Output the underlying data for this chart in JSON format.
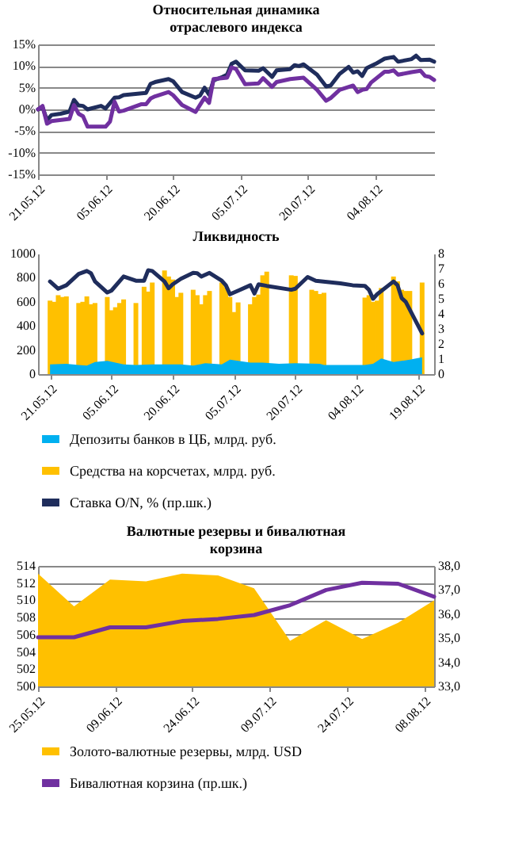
{
  "chart_data": [
    {
      "type": "line",
      "title": "Относительная динамика отраслевого индекса",
      "xlim": [
        "2012-05-21",
        "2012-08-17"
      ],
      "xticks": [
        {
          "value": "2012-05-21",
          "label": "21.05.12"
        },
        {
          "value": "2012-06-05",
          "label": "05.06.12"
        },
        {
          "value": "2012-06-20",
          "label": "20.06.12"
        },
        {
          "value": "2012-07-05",
          "label": "05.07.12"
        },
        {
          "value": "2012-07-20",
          "label": "20.07.12"
        },
        {
          "value": "2012-08-04",
          "label": "04.08.12"
        }
      ],
      "ylim": [
        -15,
        15
      ],
      "yticks": [
        {
          "value": -15,
          "label": "-15%"
        },
        {
          "value": -10,
          "label": "-10%"
        },
        {
          "value": -5,
          "label": "-5%"
        },
        {
          "value": 0,
          "label": "0%"
        },
        {
          "value": 5,
          "label": "5%"
        },
        {
          "value": 10,
          "label": "10%"
        },
        {
          "value": 15,
          "label": "15%"
        }
      ],
      "grid": "y",
      "legend": false,
      "series": [
        {
          "color": "#1f2d5c",
          "x": [
            "2012-05-21",
            "2012-05-22",
            "2012-05-23",
            "2012-05-24",
            "2012-05-26",
            "2012-05-28",
            "2012-05-29",
            "2012-05-30",
            "2012-05-31",
            "2012-06-01",
            "2012-06-04",
            "2012-06-05",
            "2012-06-07",
            "2012-06-08",
            "2012-06-09",
            "2012-06-13",
            "2012-06-14",
            "2012-06-15",
            "2012-06-16",
            "2012-06-19",
            "2012-06-20",
            "2012-06-22",
            "2012-06-25",
            "2012-06-26",
            "2012-06-27",
            "2012-06-28",
            "2012-06-29",
            "2012-07-01",
            "2012-07-02",
            "2012-07-03",
            "2012-07-04",
            "2012-07-06",
            "2012-07-09",
            "2012-07-10",
            "2012-07-12",
            "2012-07-13",
            "2012-07-16",
            "2012-07-17",
            "2012-07-18",
            "2012-07-19",
            "2012-07-22",
            "2012-07-24",
            "2012-07-25",
            "2012-07-27",
            "2012-07-29",
            "2012-07-30",
            "2012-07-31",
            "2012-08-01",
            "2012-08-02",
            "2012-08-04",
            "2012-08-06",
            "2012-08-08",
            "2012-08-09",
            "2012-08-12",
            "2012-08-13",
            "2012-08-14",
            "2012-08-16",
            "2012-08-17"
          ],
          "values": [
            0,
            0.5,
            -2.5,
            -1.3,
            -1.0,
            -0.5,
            2.2,
            0.9,
            0.8,
            0,
            0.8,
            0.2,
            2.7,
            2.8,
            3.3,
            3.7,
            3.8,
            5.9,
            6.3,
            7.0,
            6.5,
            4.0,
            2.7,
            3.2,
            5.0,
            3.4,
            6.7,
            7.5,
            8.0,
            10.5,
            11.0,
            9.0,
            8.9,
            9.5,
            7.5,
            9.0,
            9.3,
            10.2,
            10.0,
            10.4,
            8.0,
            5.3,
            5.5,
            8.2,
            9.8,
            8.5,
            8.8,
            7.7,
            9.5,
            10.5,
            11.7,
            12.1,
            11.0,
            11.6,
            12.4,
            11.4,
            11.5,
            11.0
          ]
        },
        {
          "color": "#7030a0",
          "x": [
            "2012-05-21",
            "2012-05-22",
            "2012-05-23",
            "2012-05-24",
            "2012-05-28",
            "2012-05-29",
            "2012-05-30",
            "2012-05-31",
            "2012-06-01",
            "2012-06-05",
            "2012-06-06",
            "2012-06-07",
            "2012-06-08",
            "2012-06-09",
            "2012-06-13",
            "2012-06-14",
            "2012-06-15",
            "2012-06-16",
            "2012-06-19",
            "2012-06-20",
            "2012-06-22",
            "2012-06-25",
            "2012-06-27",
            "2012-06-28",
            "2012-06-29",
            "2012-07-02",
            "2012-07-03",
            "2012-07-04",
            "2012-07-06",
            "2012-07-09",
            "2012-07-10",
            "2012-07-12",
            "2012-07-13",
            "2012-07-16",
            "2012-07-19",
            "2012-07-22",
            "2012-07-24",
            "2012-07-25",
            "2012-07-27",
            "2012-07-30",
            "2012-07-31",
            "2012-08-01",
            "2012-08-02",
            "2012-08-03",
            "2012-08-06",
            "2012-08-07",
            "2012-08-08",
            "2012-08-09",
            "2012-08-12",
            "2012-08-14",
            "2012-08-15",
            "2012-08-16",
            "2012-08-17"
          ],
          "values": [
            0,
            0.8,
            -3.3,
            -2.7,
            -2.2,
            1.0,
            -1.0,
            -1.6,
            -4.0,
            -4.0,
            -2.8,
            1.8,
            -0.5,
            -0.3,
            1.2,
            1.2,
            2.5,
            3.0,
            4.0,
            3.3,
            1.0,
            -0.6,
            2.7,
            1.5,
            7.0,
            7.3,
            9.7,
            9.3,
            5.8,
            6.0,
            7.2,
            5.2,
            6.3,
            7.0,
            7.3,
            4.5,
            2.0,
            2.6,
            4.5,
            5.5,
            4.0,
            4.5,
            4.7,
            6.2,
            8.7,
            8.7,
            9.0,
            8.0,
            8.6,
            8.9,
            7.7,
            7.5,
            6.8
          ]
        }
      ]
    },
    {
      "type": "bar",
      "title": "Ликвидность",
      "xlim": [
        "2012-05-20",
        "2012-08-21"
      ],
      "xticks": [
        {
          "value": "2012-05-21",
          "label": "21.05.12"
        },
        {
          "value": "2012-06-05",
          "label": "05.06.12"
        },
        {
          "value": "2012-06-20",
          "label": "20.06.12"
        },
        {
          "value": "2012-07-05",
          "label": "05.07.12"
        },
        {
          "value": "2012-07-20",
          "label": "20.07.12"
        },
        {
          "value": "2012-08-04",
          "label": "04.08.12"
        },
        {
          "value": "2012-08-19",
          "label": "19.08.12"
        }
      ],
      "ylim": [
        0,
        1000
      ],
      "yticks": [
        0,
        200,
        400,
        600,
        800,
        1000
      ],
      "y2lim": [
        0,
        8
      ],
      "y2ticks": [
        0,
        1,
        2,
        3,
        4,
        5,
        6,
        7,
        8
      ],
      "legend": "bottom",
      "series": [
        {
          "name": "Депозиты банков в ЦБ, млрд. руб.",
          "type": "area",
          "color": "#00b0f0",
          "x": [
            "2012-05-21",
            "2012-05-25",
            "2012-05-28",
            "2012-05-30",
            "2012-06-01",
            "2012-06-04",
            "2012-06-06",
            "2012-06-08",
            "2012-06-11",
            "2012-06-15",
            "2012-06-22",
            "2012-06-25",
            "2012-06-28",
            "2012-07-02",
            "2012-07-04",
            "2012-07-06",
            "2012-07-09",
            "2012-07-12",
            "2012-07-16",
            "2012-07-20",
            "2012-07-26",
            "2012-07-27",
            "2012-08-06",
            "2012-08-08",
            "2012-08-10",
            "2012-08-13",
            "2012-08-15",
            "2012-08-17",
            "2012-08-20"
          ],
          "values": [
            80,
            85,
            75,
            70,
            100,
            110,
            95,
            80,
            75,
            80,
            80,
            70,
            90,
            80,
            120,
            110,
            95,
            95,
            85,
            90,
            85,
            75,
            75,
            85,
            130,
            100,
            110,
            120,
            140
          ]
        },
        {
          "name": "Средства на корсчетах, млрд. руб.",
          "type": "bar",
          "color": "#ffc000",
          "x": [
            "2012-05-21",
            "2012-05-22",
            "2012-05-23",
            "2012-05-24",
            "2012-05-25",
            "2012-05-28",
            "2012-05-29",
            "2012-05-30",
            "2012-05-31",
            "2012-06-01",
            "2012-06-04",
            "2012-06-05",
            "2012-06-06",
            "2012-06-07",
            "2012-06-08",
            "2012-06-11",
            "2012-06-13",
            "2012-06-14",
            "2012-06-15",
            "2012-06-18",
            "2012-06-19",
            "2012-06-20",
            "2012-06-21",
            "2012-06-22",
            "2012-06-25",
            "2012-06-26",
            "2012-06-27",
            "2012-06-28",
            "2012-06-29",
            "2012-07-02",
            "2012-07-03",
            "2012-07-04",
            "2012-07-05",
            "2012-07-06",
            "2012-07-09",
            "2012-07-10",
            "2012-07-11",
            "2012-07-12",
            "2012-07-13",
            "2012-07-19",
            "2012-07-20",
            "2012-07-24",
            "2012-07-25",
            "2012-07-26",
            "2012-07-27",
            "2012-08-06",
            "2012-08-07",
            "2012-08-08",
            "2012-08-09",
            "2012-08-10",
            "2012-08-13",
            "2012-08-14",
            "2012-08-15",
            "2012-08-16",
            "2012-08-17",
            "2012-08-20"
          ],
          "values": [
            610,
            600,
            655,
            640,
            645,
            590,
            600,
            645,
            580,
            590,
            640,
            530,
            555,
            590,
            620,
            590,
            725,
            685,
            760,
            860,
            810,
            785,
            640,
            675,
            700,
            655,
            580,
            655,
            690,
            760,
            720,
            640,
            515,
            595,
            580,
            640,
            660,
            820,
            850,
            820,
            815,
            700,
            690,
            665,
            675,
            635,
            655,
            600,
            610,
            715,
            810,
            770,
            700,
            690,
            690,
            760
          ]
        },
        {
          "name": "Ставка O/N, % (пр.шк.)",
          "type": "line",
          "axis": "y2",
          "color": "#1f2d5c",
          "x": [
            "2012-05-21",
            "2012-05-23",
            "2012-05-25",
            "2012-05-28",
            "2012-05-30",
            "2012-05-31",
            "2012-06-01",
            "2012-06-04",
            "2012-06-05",
            "2012-06-08",
            "2012-06-11",
            "2012-06-13",
            "2012-06-14",
            "2012-06-15",
            "2012-06-18",
            "2012-06-19",
            "2012-06-20",
            "2012-06-22",
            "2012-06-25",
            "2012-06-26",
            "2012-06-27",
            "2012-06-29",
            "2012-07-02",
            "2012-07-03",
            "2012-07-04",
            "2012-07-06",
            "2012-07-09",
            "2012-07-10",
            "2012-07-11",
            "2012-07-13",
            "2012-07-19",
            "2012-07-20",
            "2012-07-23",
            "2012-07-25",
            "2012-07-31",
            "2012-08-03",
            "2012-08-06",
            "2012-08-07",
            "2012-08-08",
            "2012-08-09",
            "2012-08-13",
            "2012-08-14",
            "2012-08-15",
            "2012-08-16",
            "2012-08-20"
          ],
          "values": [
            6.15,
            5.67,
            5.9,
            6.65,
            6.85,
            6.7,
            6.15,
            5.42,
            5.54,
            6.48,
            6.2,
            6.2,
            6.9,
            6.85,
            6.15,
            5.7,
            5.96,
            6.33,
            6.72,
            6.7,
            6.48,
            6.72,
            6.2,
            5.9,
            5.3,
            5.54,
            5.9,
            5.35,
            5.96,
            5.86,
            5.6,
            5.67,
            6.45,
            6.2,
            6.03,
            5.9,
            5.86,
            5.6,
            5.0,
            5.3,
            6.15,
            5.9,
            5.05,
            4.8,
            2.7
          ]
        }
      ]
    },
    {
      "type": "area",
      "title": "Валютные резервы и бивалютная корзина",
      "xlim": [
        "2012-05-25",
        "2012-08-10"
      ],
      "xticks": [
        {
          "value": "2012-05-25",
          "label": "25.05.12"
        },
        {
          "value": "2012-06-09",
          "label": "09.06.12"
        },
        {
          "value": "2012-06-24",
          "label": "24.06.12"
        },
        {
          "value": "2012-07-09",
          "label": "09.07.12"
        },
        {
          "value": "2012-07-24",
          "label": "24.07.12"
        },
        {
          "value": "2012-08-08",
          "label": "08.08.12"
        }
      ],
      "ylim": [
        500,
        514
      ],
      "yticks": [
        500,
        502,
        504,
        506,
        508,
        510,
        512,
        514
      ],
      "y2lim": [
        33,
        38
      ],
      "y2ticks": [
        {
          "value": 33,
          "label": "33,0"
        },
        {
          "value": 34,
          "label": "34,0"
        },
        {
          "value": 35,
          "label": "35,0"
        },
        {
          "value": 36,
          "label": "36,0"
        },
        {
          "value": 37,
          "label": "37,0"
        },
        {
          "value": 38,
          "label": "38,0"
        }
      ],
      "grid": "y",
      "legend": "bottom",
      "series": [
        {
          "name": "Золото-валютные резервы, млрд. USD",
          "color": "#ffc000",
          "x": [
            "2012-05-25",
            "2012-06-01",
            "2012-06-08",
            "2012-06-15",
            "2012-06-22",
            "2012-06-29",
            "2012-07-06",
            "2012-07-13",
            "2012-07-20",
            "2012-07-27",
            "2012-08-03",
            "2012-08-10"
          ],
          "values": [
            513.1,
            509.3,
            512.4,
            512.2,
            513.1,
            512.9,
            511.4,
            505.3,
            507.7,
            505.5,
            507.4,
            510.0
          ]
        },
        {
          "name": "Бивалютная корзина (пр.шк.)",
          "type": "line",
          "axis": "y2",
          "color": "#7030a0",
          "x": [
            "2012-05-25",
            "2012-06-01",
            "2012-06-08",
            "2012-06-15",
            "2012-06-22",
            "2012-06-29",
            "2012-07-06",
            "2012-07-13",
            "2012-07-20",
            "2012-07-27",
            "2012-08-03",
            "2012-08-10"
          ],
          "values": [
            35.04,
            35.04,
            35.45,
            35.45,
            35.71,
            35.8,
            35.96,
            36.37,
            37.0,
            37.3,
            37.26,
            36.72
          ]
        }
      ]
    }
  ]
}
